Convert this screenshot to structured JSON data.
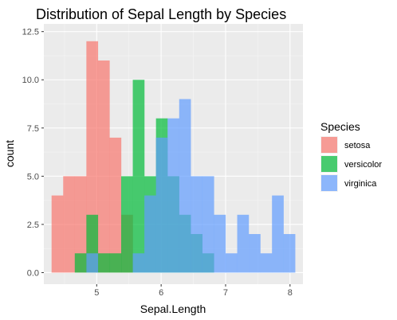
{
  "chart_data": {
    "type": "histogram",
    "title": "Distribution of Sepal Length by Species",
    "xlabel": "Sepal.Length",
    "ylabel": "count",
    "xlim": [
      4.18,
      8.2
    ],
    "ylim": [
      -0.6,
      12.9
    ],
    "x_ticks": [
      5,
      6,
      7,
      8
    ],
    "y_ticks": [
      0.0,
      2.5,
      5.0,
      7.5,
      10.0,
      12.5
    ],
    "y_tick_labels": [
      "0.0",
      "2.5",
      "5.0",
      "7.5",
      "10.0",
      "12.5"
    ],
    "bin_edges": [
      4.3,
      4.48,
      4.66,
      4.84,
      5.02,
      5.2,
      5.38,
      5.56,
      5.74,
      5.92,
      6.1,
      6.28,
      6.46,
      6.64,
      6.82,
      7.0,
      7.18,
      7.36,
      7.54,
      7.72,
      7.9,
      8.08
    ],
    "grid": true,
    "bar_opacity": 0.7,
    "legend_title": "Species",
    "legend_position": "right",
    "series": [
      {
        "name": "setosa",
        "color": "#F8766D",
        "counts": [
          4,
          5,
          5,
          12,
          11,
          7,
          3,
          0,
          0,
          0,
          0,
          0,
          0,
          0,
          0,
          0,
          0,
          0,
          0,
          0,
          0
        ]
      },
      {
        "name": "versicolor",
        "color": "#00BA38",
        "counts": [
          0,
          0,
          1,
          3,
          1,
          1,
          5,
          10,
          5,
          8,
          5,
          3,
          2,
          1,
          0,
          0,
          0,
          0,
          0,
          0,
          0
        ]
      },
      {
        "name": "virginica",
        "color": "#619CFF",
        "counts": [
          0,
          0,
          0,
          1,
          0,
          0,
          0,
          1,
          4,
          7,
          8,
          9,
          5,
          5,
          3,
          1,
          3,
          2,
          1,
          4,
          2
        ]
      }
    ]
  }
}
